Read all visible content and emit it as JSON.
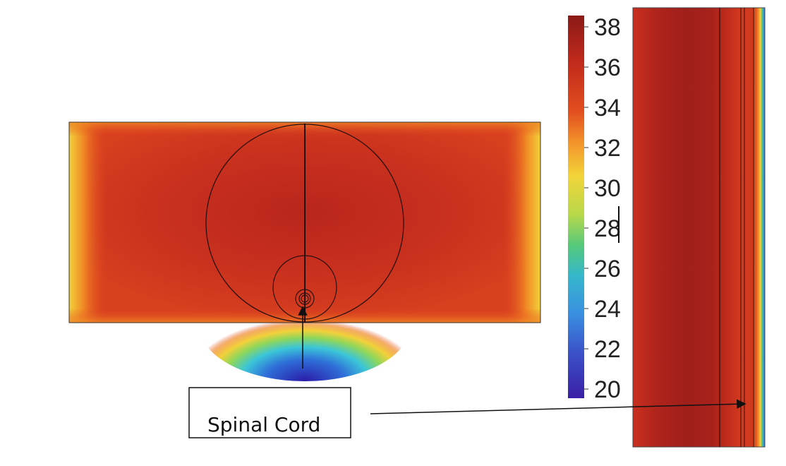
{
  "colorbar": {
    "ticks": [
      "38",
      "36",
      "34",
      "32",
      "30",
      "28",
      "26",
      "24",
      "22",
      "20"
    ]
  },
  "callout": {
    "label": "Spinal Cord"
  },
  "colors": {
    "hot": "#d73a1f",
    "core": "#a5211c",
    "cold": "#2a1aa8"
  }
}
